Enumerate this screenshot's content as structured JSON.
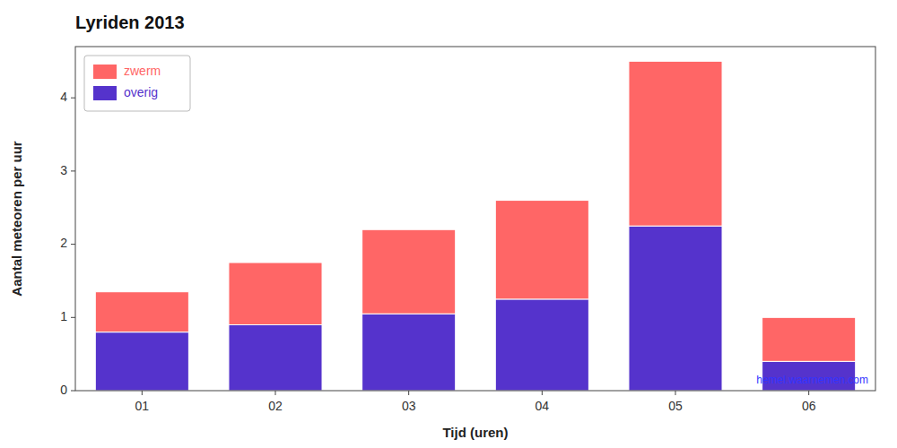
{
  "chart_data": {
    "type": "bar",
    "stacked": true,
    "title": "Lyriden 2013",
    "x_label": "Tijd (uren)",
    "y_label": "Aantal meteoren per uur",
    "categories": [
      "01",
      "02",
      "03",
      "04",
      "05",
      "06"
    ],
    "series": [
      {
        "name": "overig",
        "color": "#5533CC",
        "values": [
          0.8,
          0.9,
          1.05,
          1.25,
          2.25,
          0.4
        ]
      },
      {
        "name": "zwerm",
        "color": "#FF6666",
        "values": [
          0.55,
          0.85,
          1.15,
          1.35,
          2.25,
          0.6
        ]
      }
    ],
    "ylim": [
      0,
      4.7
    ],
    "yticks": [
      0,
      1,
      2,
      3,
      4
    ],
    "grid": false,
    "legend": "upper left",
    "annotations": [
      "hemel.waarnemen.com"
    ]
  }
}
